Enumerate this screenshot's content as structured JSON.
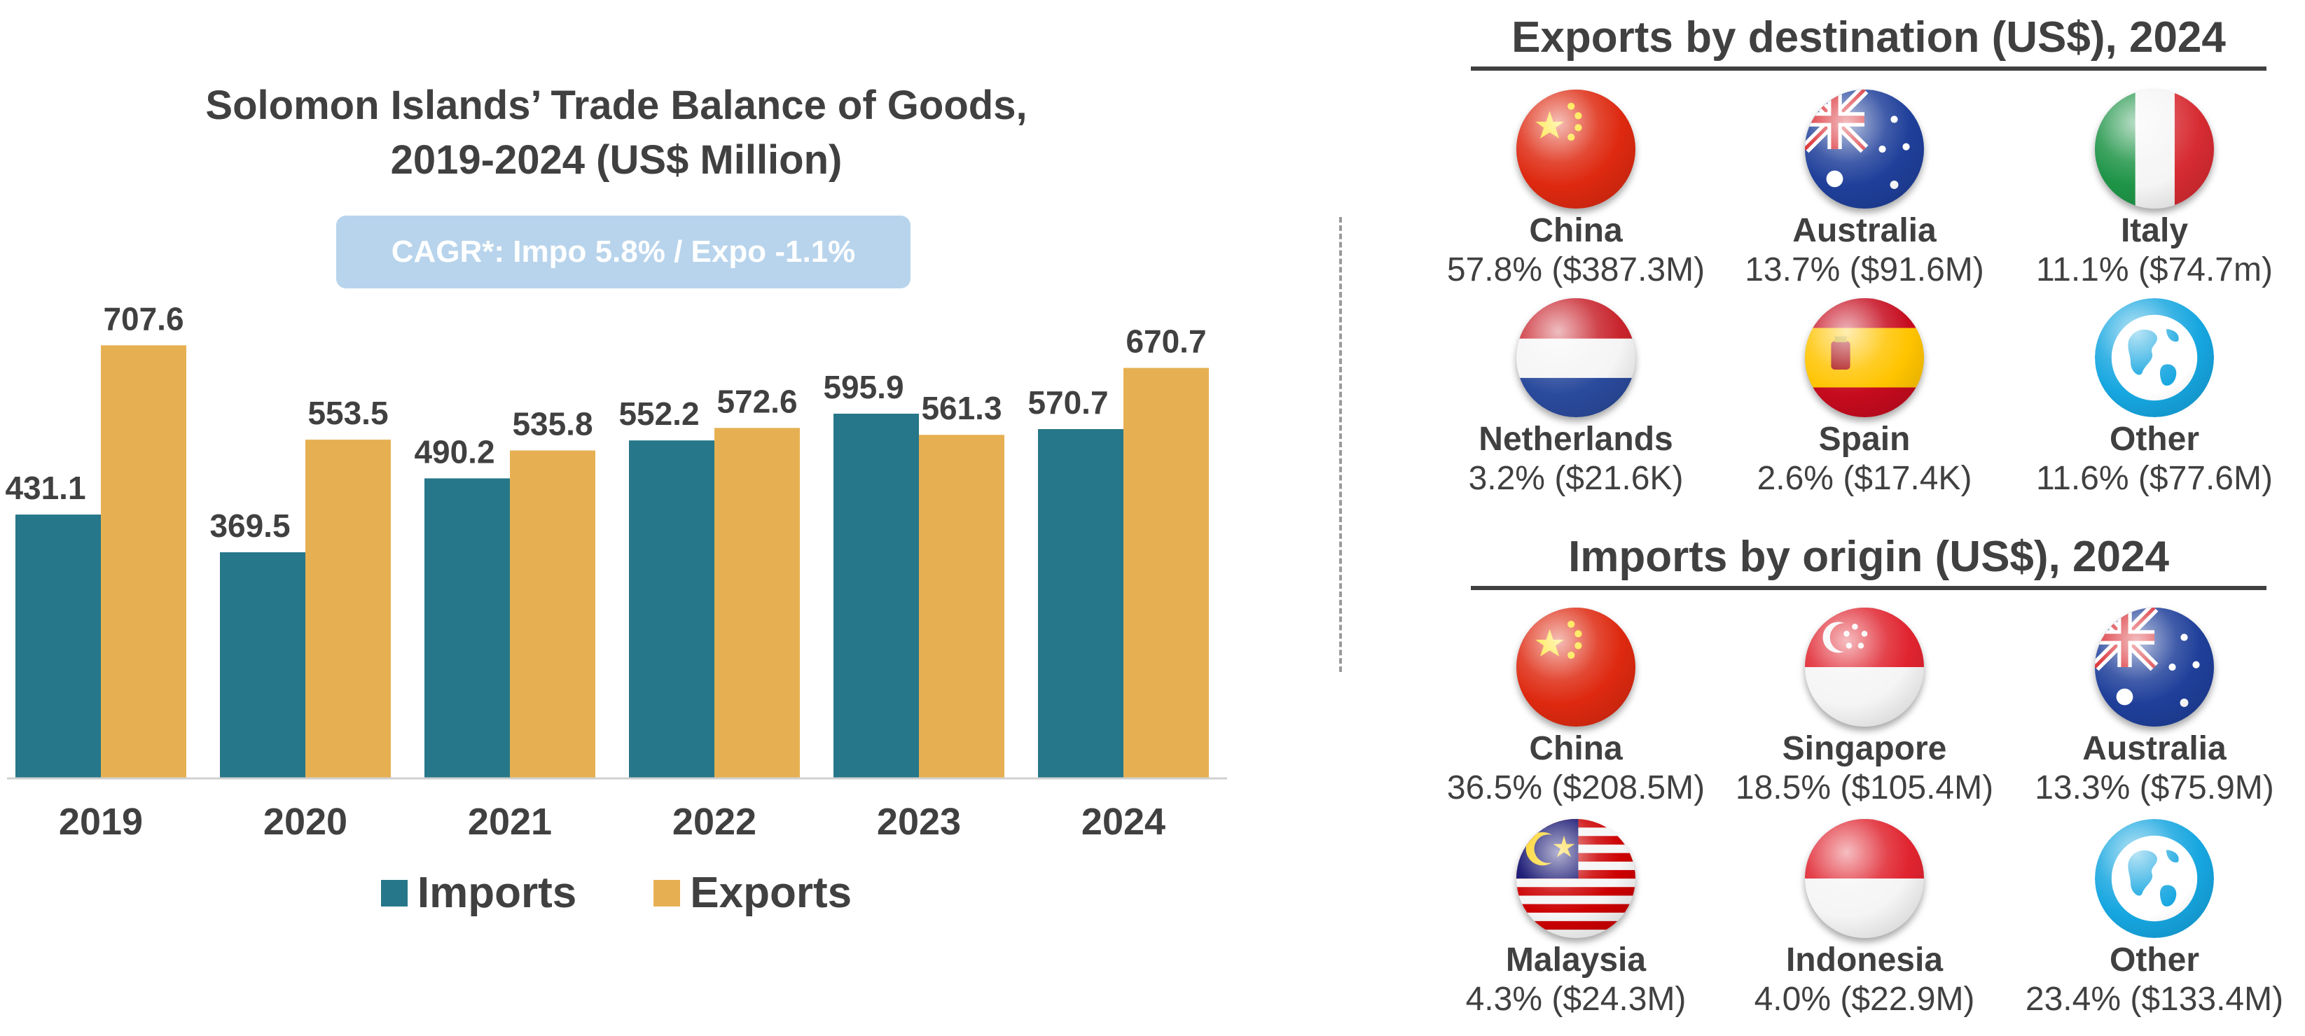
{
  "chart_data": {
    "type": "bar",
    "title": [
      "Solomon Islands’ Trade Balance of Goods,",
      "2019-2024 (US$ Million)"
    ],
    "categories": [
      "2019",
      "2020",
      "2021",
      "2022",
      "2023",
      "2024"
    ],
    "series": [
      {
        "name": "Imports",
        "color": "#267789",
        "values": [
          431.1,
          369.5,
          490.2,
          552.2,
          595.9,
          570.7
        ]
      },
      {
        "name": "Exports",
        "color": "#e6b052",
        "values": [
          707.6,
          553.5,
          535.8,
          572.6,
          561.3,
          670.7
        ]
      }
    ],
    "data_labels": {
      "Imports": [
        "431.1",
        "369.5",
        "490.2",
        "552.2",
        "595.9",
        "570.7"
      ],
      "Exports": [
        "707.6",
        "553.5",
        "535.8",
        "572.6",
        "561.3",
        "670.7"
      ]
    },
    "ylim": [
      0,
      780
    ],
    "xlabel": "",
    "ylabel": "",
    "grid": false,
    "legend_position": "bottom",
    "annotation": "CAGR*: Impo 5.8% / Expo -1.1%"
  },
  "exports": {
    "title": "Exports by destination (US$), 2024",
    "countries": [
      {
        "name": "China",
        "value": "57.8% ($387.3M)",
        "flag": "china-flag"
      },
      {
        "name": "Australia",
        "value": "13.7% ($91.6M)",
        "flag": "australia-flag"
      },
      {
        "name": "Italy",
        "value": "11.1% ($74.7m)",
        "flag": "italy-flag"
      },
      {
        "name": "Netherlands",
        "value": "3.2% ($21.6K)",
        "flag": "netherlands-flag"
      },
      {
        "name": "Spain",
        "value": "2.6% ($17.4K)",
        "flag": "spain-flag"
      },
      {
        "name": "Other",
        "value": "11.6% ($77.6M)",
        "flag": "globe-icon"
      }
    ]
  },
  "imports": {
    "title": "Imports by origin (US$), 2024",
    "countries": [
      {
        "name": "China",
        "value": "36.5% ($208.5M)",
        "flag": "china-flag"
      },
      {
        "name": "Singapore",
        "value": "18.5% ($105.4M)",
        "flag": "singapore-flag"
      },
      {
        "name": "Australia",
        "value": "13.3% ($75.9M)",
        "flag": "australia-flag"
      },
      {
        "name": "Malaysia",
        "value": "4.3% ($24.3M)",
        "flag": "malaysia-flag"
      },
      {
        "name": "Indonesia",
        "value": "4.0% ($22.9M)",
        "flag": "indonesia-flag"
      },
      {
        "name": "Other",
        "value": "23.4% ($133.4M)",
        "flag": "globe-icon"
      }
    ]
  },
  "colors": {
    "imports": "#267789",
    "exports": "#e6b052",
    "text": "#404040",
    "badge": "#b8d4ec"
  }
}
